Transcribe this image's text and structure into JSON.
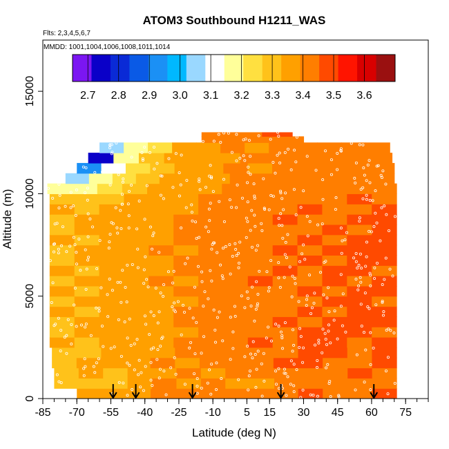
{
  "chart_data": {
    "type": "heatmap",
    "title": "ATOM3 Southbound H1211_WAS",
    "flights_label": "Flts: 2,3,4,5,6,7",
    "mmdd_label": "MMDD: 1001,1004,1006,1008,1011,1014",
    "xlabel": "Latitude (deg N)",
    "ylabel": "Altitude (m)",
    "xlim": [
      -85,
      85
    ],
    "ylim": [
      0,
      17500
    ],
    "x_ticks": [
      -85,
      -70,
      -55,
      -40,
      -25,
      -10,
      5,
      15,
      30,
      45,
      60,
      75
    ],
    "x_tick_labels": [
      "-85",
      "-70",
      "-55",
      "-40",
      "-25",
      "-10",
      "5",
      "15",
      "30",
      "45",
      "60",
      "75"
    ],
    "x_minor_step": 5,
    "y_ticks": [
      0,
      5000,
      10000,
      15000
    ],
    "y_tick_labels": [
      "0",
      "5000",
      "10000",
      "15000"
    ],
    "colorbar": {
      "min": 2.65,
      "max": 3.7,
      "ticks": [
        2.7,
        2.8,
        2.9,
        3.0,
        3.1,
        3.2,
        3.3,
        3.4,
        3.5,
        3.6
      ],
      "tick_labels": [
        "2.7",
        "2.8",
        "2.9",
        "3.0",
        "3.1",
        "3.2",
        "3.3",
        "3.4",
        "3.5",
        "3.6"
      ],
      "colors": [
        "#7b16f2",
        "#0a00c8",
        "#0a2ad6",
        "#0a5ae6",
        "#1b90f5",
        "#00b8ff",
        "#9ad8ff",
        "#ffffff",
        "#ffff9a",
        "#ffe040",
        "#ffc21a",
        "#ffa000",
        "#ff7e00",
        "#ff4a00",
        "#ff1400",
        "#d80000",
        "#9a1010"
      ]
    },
    "arrow_latitudes": [
      -54,
      -44,
      -19,
      20,
      61
    ],
    "cells": [
      {
        "y0": 0,
        "y1": 500,
        "lat_range": [
          -70,
          71
        ],
        "values": [
          3.35,
          3.35,
          3.38,
          3.4,
          3.42,
          3.45,
          3.43,
          3.45,
          3.42,
          3.46,
          3.44,
          3.45,
          3.46
        ]
      },
      {
        "y0": 500,
        "y1": 1000,
        "lat_range": [
          -80,
          71
        ],
        "values": [
          3.3,
          3.3,
          3.32,
          3.33,
          3.4,
          3.38,
          3.42,
          3.36,
          3.35,
          3.44,
          3.42,
          3.43,
          3.45,
          3.44
        ]
      },
      {
        "y0": 1000,
        "y1": 1500,
        "lat_range": [
          -80,
          71
        ],
        "values": [
          3.32,
          3.35,
          3.3,
          3.36,
          3.38,
          3.4,
          3.38,
          3.42,
          3.4,
          3.44,
          3.42,
          3.43,
          3.46,
          3.45
        ]
      },
      {
        "y0": 1500,
        "y1": 2000,
        "lat_range": [
          -81,
          71
        ],
        "values": [
          3.32,
          3.33,
          3.34,
          3.36,
          3.4,
          3.38,
          3.4,
          3.44,
          3.42,
          3.46,
          3.48,
          3.45,
          3.44,
          3.47
        ]
      },
      {
        "y0": 2000,
        "y1": 2500,
        "lat_range": [
          -81,
          71
        ],
        "values": [
          3.3,
          3.32,
          3.34,
          3.38,
          3.36,
          3.42,
          3.4,
          3.44,
          3.45,
          3.44,
          3.5,
          3.46,
          3.44,
          3.48
        ]
      },
      {
        "y0": 2500,
        "y1": 3000,
        "lat_range": [
          -82,
          71
        ],
        "values": [
          3.33,
          3.31,
          3.36,
          3.38,
          3.37,
          3.4,
          3.42,
          3.43,
          3.46,
          3.44,
          3.46,
          3.47,
          3.45,
          3.46
        ]
      },
      {
        "y0": 3000,
        "y1": 3500,
        "lat_range": [
          -82,
          71
        ],
        "values": [
          3.32,
          3.34,
          3.35,
          3.36,
          3.39,
          3.38,
          3.41,
          3.42,
          3.45,
          3.44,
          3.46,
          3.48,
          3.46,
          3.45
        ]
      },
      {
        "y0": 3500,
        "y1": 4000,
        "lat_range": [
          -82,
          71
        ],
        "values": [
          3.31,
          3.33,
          3.36,
          3.35,
          3.38,
          3.4,
          3.42,
          3.4,
          3.44,
          3.46,
          3.45,
          3.46,
          3.47,
          3.46
        ]
      },
      {
        "y0": 4000,
        "y1": 4500,
        "lat_range": [
          -82,
          71
        ],
        "values": [
          3.34,
          3.32,
          3.35,
          3.37,
          3.39,
          3.41,
          3.4,
          3.42,
          3.45,
          3.43,
          3.47,
          3.44,
          3.46,
          3.48
        ]
      },
      {
        "y0": 4500,
        "y1": 5000,
        "lat_range": [
          -82,
          71
        ],
        "values": [
          3.32,
          3.35,
          3.33,
          3.36,
          3.38,
          3.37,
          3.42,
          3.43,
          3.42,
          3.45,
          3.44,
          3.47,
          3.46,
          3.45
        ]
      },
      {
        "y0": 5000,
        "y1": 5500,
        "lat_range": [
          -82,
          71
        ],
        "values": [
          3.33,
          3.31,
          3.36,
          3.38,
          3.36,
          3.4,
          3.41,
          3.44,
          3.43,
          3.45,
          3.46,
          3.43,
          3.47,
          3.46
        ]
      },
      {
        "y0": 5500,
        "y1": 6000,
        "lat_range": [
          -82,
          71
        ],
        "values": [
          3.31,
          3.34,
          3.35,
          3.36,
          3.4,
          3.39,
          3.4,
          3.42,
          3.46,
          3.44,
          3.45,
          3.46,
          3.44,
          3.47
        ]
      },
      {
        "y0": 6000,
        "y1": 6500,
        "lat_range": [
          -82,
          71
        ],
        "values": [
          3.33,
          3.32,
          3.36,
          3.37,
          3.38,
          3.4,
          3.43,
          3.41,
          3.44,
          3.46,
          3.43,
          3.48,
          3.46,
          3.45
        ]
      },
      {
        "y0": 6500,
        "y1": 7000,
        "lat_range": [
          -82,
          71
        ],
        "values": [
          3.32,
          3.34,
          3.33,
          3.38,
          3.37,
          3.41,
          3.4,
          3.43,
          3.45,
          3.44,
          3.47,
          3.45,
          3.47,
          3.46
        ]
      },
      {
        "y0": 7000,
        "y1": 7500,
        "lat_range": [
          -82,
          71
        ],
        "values": [
          3.31,
          3.33,
          3.36,
          3.36,
          3.4,
          3.38,
          3.42,
          3.44,
          3.43,
          3.46,
          3.44,
          3.47,
          3.46,
          3.48
        ]
      },
      {
        "y0": 7500,
        "y1": 8000,
        "lat_range": [
          -82,
          71
        ],
        "values": [
          3.33,
          3.32,
          3.34,
          3.38,
          3.37,
          3.4,
          3.41,
          3.42,
          3.45,
          3.43,
          3.46,
          3.45,
          3.48,
          3.46
        ]
      },
      {
        "y0": 8000,
        "y1": 8500,
        "lat_range": [
          -82,
          71
        ],
        "values": [
          3.32,
          3.34,
          3.36,
          3.35,
          3.39,
          3.41,
          3.4,
          3.44,
          3.44,
          3.45,
          3.43,
          3.47,
          3.45,
          3.47
        ]
      },
      {
        "y0": 8500,
        "y1": 9000,
        "lat_range": [
          -82,
          71
        ],
        "values": [
          3.31,
          3.33,
          3.35,
          3.37,
          3.38,
          3.4,
          3.42,
          3.41,
          3.43,
          3.46,
          3.45,
          3.44,
          3.47,
          3.46
        ]
      },
      {
        "y0": 9000,
        "y1": 9500,
        "lat_range": [
          -82,
          71
        ],
        "values": [
          3.33,
          3.31,
          3.34,
          3.36,
          3.39,
          3.38,
          3.41,
          3.43,
          3.44,
          3.43,
          3.46,
          3.45,
          3.44,
          3.46
        ]
      },
      {
        "y0": 9500,
        "y1": 10000,
        "lat_range": [
          -82,
          71
        ],
        "values": [
          3.28,
          3.32,
          3.3,
          3.35,
          3.37,
          3.39,
          3.4,
          3.42,
          3.41,
          3.44,
          3.43,
          3.45,
          3.46,
          3.44
        ]
      },
      {
        "y0": 10000,
        "y1": 10500,
        "lat_range": [
          -83,
          71
        ],
        "values": [
          3.17,
          3.2,
          3.26,
          3.3,
          3.34,
          3.36,
          3.38,
          3.4,
          3.42,
          3.41,
          3.43,
          3.44,
          3.42,
          3.45
        ]
      },
      {
        "y0": 10500,
        "y1": 11000,
        "lat_range": [
          -75,
          70
        ],
        "values": [
          3.05,
          3.15,
          3.24,
          3.3,
          3.35,
          3.36,
          3.38,
          3.41,
          3.4,
          3.42,
          3.44,
          3.41,
          3.43,
          3.44
        ]
      },
      {
        "y0": 11000,
        "y1": 11500,
        "lat_range": [
          -70,
          70
        ],
        "values": [
          2.9,
          3.12,
          3.25,
          3.32,
          3.35,
          3.38,
          3.4,
          3.39,
          3.42,
          3.41,
          3.44,
          3.43,
          3.42
        ]
      },
      {
        "y0": 11500,
        "y1": 12000,
        "lat_range": [
          -65,
          69
        ],
        "values": [
          2.72,
          3.16,
          3.28,
          3.33,
          3.36,
          3.37,
          3.4,
          3.42,
          3.41,
          3.43,
          3.42,
          3.45
        ]
      },
      {
        "y0": 12000,
        "y1": 12500,
        "lat_range": [
          -60,
          68
        ],
        "values": [
          3.05,
          3.18,
          3.26,
          3.33,
          3.37,
          3.4,
          3.39,
          3.42,
          3.43,
          3.41,
          3.44,
          3.42
        ]
      },
      {
        "y0": 12500,
        "y1": 12800,
        "lat_range": [
          -15,
          30
        ],
        "values": [
          3.42,
          3.44,
          3.43,
          3.45
        ]
      },
      {
        "y0": 12800,
        "y1": 13000,
        "lat_range": [
          -15,
          25
        ],
        "values": [
          3.44,
          3.43,
          3.46
        ]
      }
    ]
  }
}
